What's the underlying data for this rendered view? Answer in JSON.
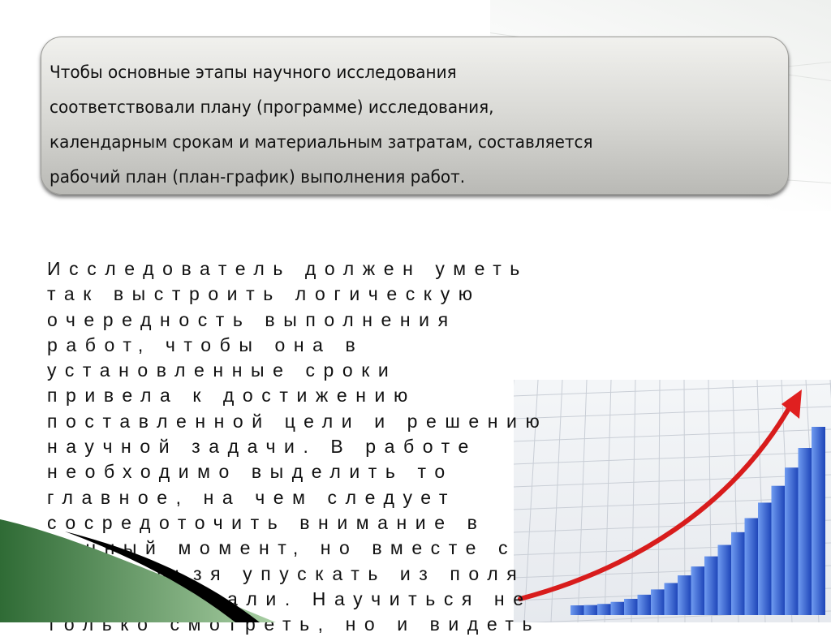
{
  "callout": {
    "lines": [
      "Чтобы основные этапы научного исследования",
      "соответствовали плану (программе) исследования,",
      "календарным срокам и материальным затратам, составляется",
      "рабочий план (план-график) выполнения работ."
    ]
  },
  "body": {
    "lines": [
      "Исследователь должен уметь",
      "так выстроить логическую",
      "очередность выполнения",
      "работ, чтобы она в",
      "установленные сроки",
      "привела к достижению",
      "поставленной цели и решению",
      "научной задачи. В работе",
      "необходимо выделить то",
      "главное, на чем следует",
      "сосредоточить внимание в",
      "данный момент, но вместе с",
      "тем нельзя упускать из поля",
      "зрения детали. Научиться не",
      "только смотреть, но и видеть"
    ]
  },
  "illustration": {
    "icon": "growth-chart-arrow-icon",
    "bar_color": "#2f5fd0",
    "arrow_color": "#e02020"
  },
  "colors": {
    "callout": "#d6d6d2",
    "swoosh_green": "#3f7f45",
    "text": "#111111"
  }
}
